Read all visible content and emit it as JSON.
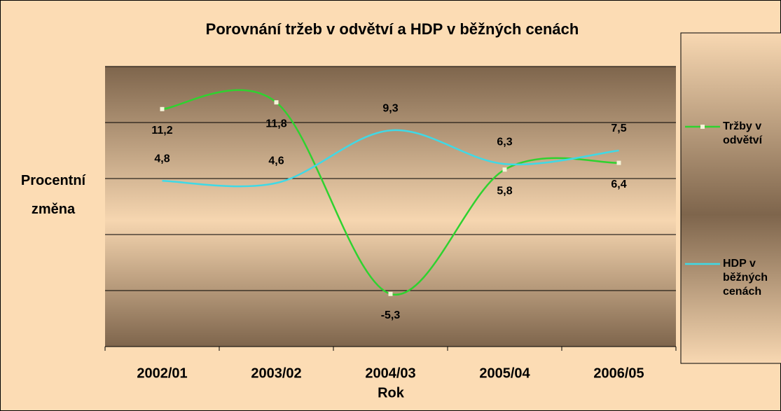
{
  "chart_data": {
    "type": "line",
    "title": "Porovnání tržeb v odvětví a HDP v běžných cenách",
    "x_label": "Rok",
    "y_label": "Procentní změna",
    "categories": [
      "2002/01",
      "2003/02",
      "2004/03",
      "2005/04",
      "2006/05"
    ],
    "series": [
      {
        "name": "Tržby v odvětví",
        "color": "#2fd22f",
        "values": [
          11.2,
          11.8,
          -5.3,
          5.8,
          6.4
        ],
        "value_labels": [
          "11,2",
          "11,8",
          "-5,3",
          "5,8",
          "6,4"
        ],
        "label_position": "below",
        "markers": true
      },
      {
        "name": "HDP v běžných cenách",
        "color": "#3fd9e6",
        "values": [
          4.8,
          4.6,
          9.3,
          6.3,
          7.5
        ],
        "value_labels": [
          "4,8",
          "4,6",
          "9,3",
          "6,3",
          "7,5"
        ],
        "label_position": "above",
        "markers": false
      }
    ],
    "ylim": [
      -10,
      15
    ],
    "yticks": [
      -10,
      -5,
      0,
      5,
      10,
      15
    ],
    "grid": true,
    "smooth": true,
    "legend": "right"
  }
}
